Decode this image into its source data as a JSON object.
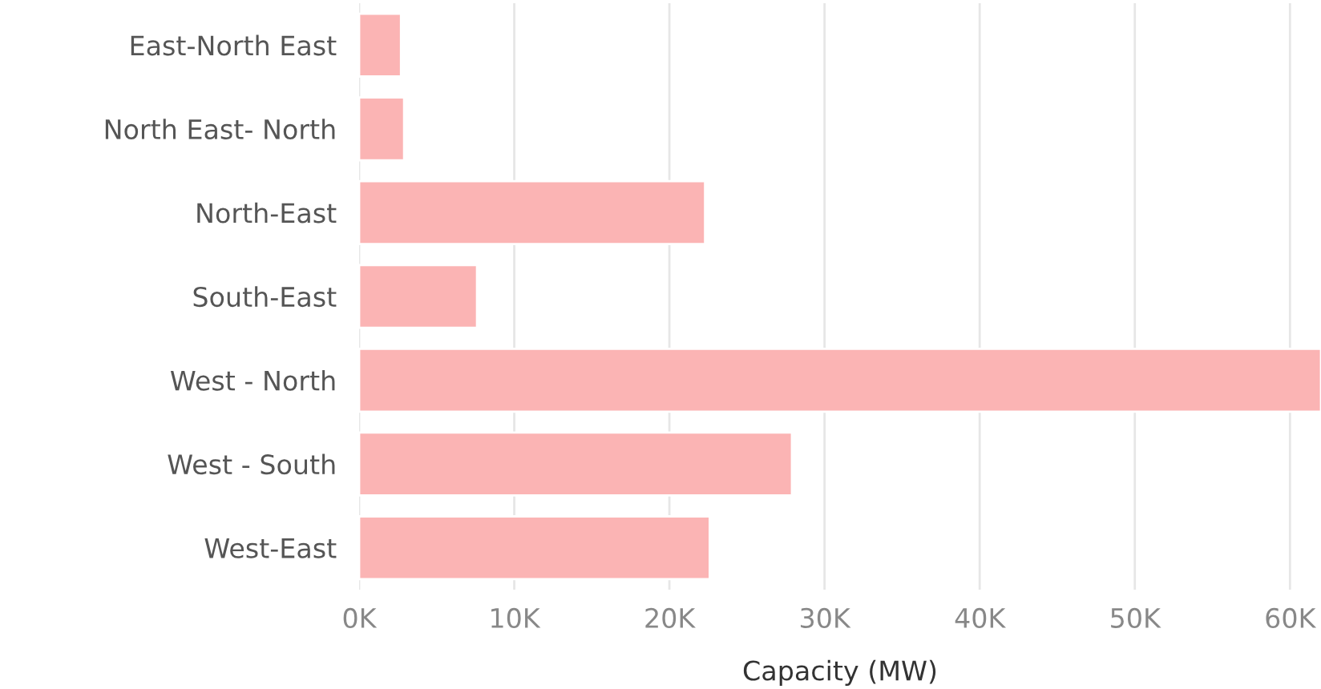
{
  "chart_data": {
    "type": "bar",
    "orientation": "horizontal",
    "xlabel": "Capacity (MW)",
    "categories": [
      "East-North East",
      "North East- North",
      "North-East",
      "South-East",
      "West - North",
      "West - South",
      "West-East"
    ],
    "values": [
      2700,
      2900,
      22300,
      7600,
      62000,
      27900,
      22600
    ],
    "color": "#fbb4b4",
    "xlim": [
      0,
      62000
    ],
    "xticks": [
      {
        "value": 0,
        "label": "0K"
      },
      {
        "value": 10000,
        "label": "10K"
      },
      {
        "value": 20000,
        "label": "20K"
      },
      {
        "value": 30000,
        "label": "30K"
      },
      {
        "value": 40000,
        "label": "40K"
      },
      {
        "value": 50000,
        "label": "50K"
      },
      {
        "value": 60000,
        "label": "60K"
      }
    ],
    "grid": "x"
  }
}
